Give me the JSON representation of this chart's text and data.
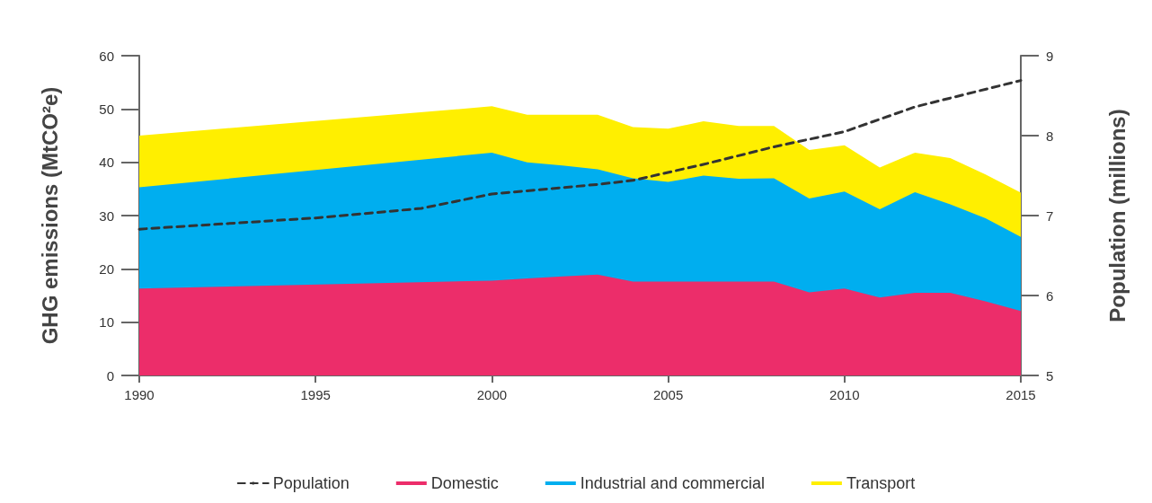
{
  "chart_data": {
    "type": "area",
    "ylabel": "GHG emissions (MtCO²e)",
    "y2label": "Population (millions)",
    "x": [
      1990,
      2000,
      2001,
      2002,
      2003,
      2004,
      2005,
      2006,
      2007,
      2008,
      2009,
      2010,
      2011,
      2012,
      2013,
      2014,
      2015
    ],
    "stacked": true,
    "series": [
      {
        "name": "Population",
        "type": "line",
        "axis": "y2",
        "color": "#333333",
        "line_style": "dashed",
        "x": [
          1990,
          1995,
          1998,
          2000,
          2001,
          2003,
          2004,
          2006,
          2008,
          2010,
          2012,
          2013,
          2015
        ],
        "values": [
          6.83,
          6.97,
          7.09,
          7.27,
          7.31,
          7.39,
          7.44,
          7.64,
          7.86,
          8.05,
          8.36,
          8.47,
          8.69
        ]
      },
      {
        "name": "Domestic",
        "color": "#ec2d6a",
        "values": [
          16.3,
          17.8,
          18.2,
          18.6,
          18.9,
          17.6,
          17.6,
          17.6,
          17.6,
          17.6,
          15.6,
          16.3,
          14.6,
          15.5,
          15.5,
          13.9,
          12.1
        ]
      },
      {
        "name": "Industrial and commercial",
        "color": "#00aeef",
        "values": [
          19.0,
          24.0,
          21.8,
          20.8,
          19.8,
          19.4,
          18.7,
          19.9,
          19.3,
          19.4,
          17.6,
          18.2,
          16.6,
          18.9,
          16.6,
          15.6,
          13.9
        ]
      },
      {
        "name": "Transport",
        "color": "#ffef00",
        "values": [
          9.7,
          8.7,
          8.9,
          9.5,
          10.2,
          9.6,
          10.0,
          10.2,
          9.9,
          9.8,
          9.1,
          8.7,
          7.8,
          7.4,
          8.7,
          8.2,
          8.3
        ]
      }
    ],
    "xlim": [
      1990,
      2015
    ],
    "xticks": [
      1990,
      1995,
      2000,
      2005,
      2010,
      2015
    ],
    "ylim": [
      0,
      60
    ],
    "yticks": [
      0,
      10,
      20,
      30,
      40,
      50,
      60
    ],
    "y2lim": [
      5,
      9
    ],
    "y2ticks": [
      5,
      6,
      7,
      8,
      9
    ],
    "legend": "bottom"
  }
}
